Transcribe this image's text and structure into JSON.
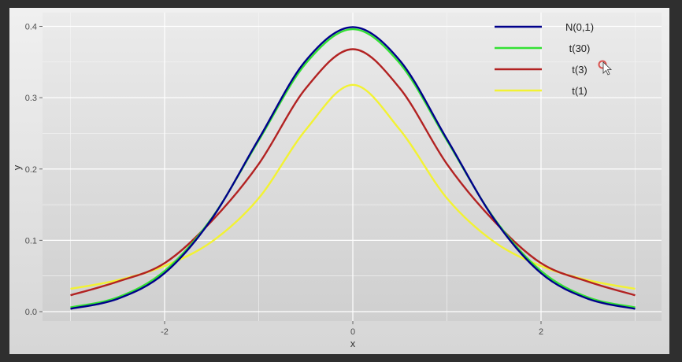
{
  "chart_data": {
    "type": "line",
    "title": "",
    "xlabel": "x",
    "ylabel": "y",
    "xlim": [
      -3,
      3
    ],
    "ylim": [
      0,
      0.4
    ],
    "x_ticks": [
      -2,
      0,
      2
    ],
    "y_ticks": [
      0.0,
      0.1,
      0.2,
      0.3,
      0.4
    ],
    "x_tick_labels": [
      "-2",
      "0",
      "2"
    ],
    "y_tick_labels": [
      "0.0",
      "0.1",
      "0.2",
      "0.3",
      "0.4"
    ],
    "grid": true,
    "legend_position": "top-right",
    "x": [
      -3,
      -2.5,
      -2,
      -1.5,
      -1,
      -0.5,
      0,
      0.5,
      1,
      1.5,
      2,
      2.5,
      3
    ],
    "series": [
      {
        "name": "N(0,1)",
        "color": "#00008b",
        "values": [
          0.004,
          0.018,
          0.054,
          0.13,
          0.242,
          0.352,
          0.399,
          0.352,
          0.242,
          0.13,
          0.054,
          0.018,
          0.004
        ]
      },
      {
        "name": "t(30)",
        "color": "#33e033",
        "values": [
          0.006,
          0.02,
          0.057,
          0.131,
          0.24,
          0.348,
          0.396,
          0.348,
          0.24,
          0.131,
          0.057,
          0.02,
          0.006
        ]
      },
      {
        "name": "t(3)",
        "color": "#b22222",
        "values": [
          0.023,
          0.042,
          0.068,
          0.127,
          0.207,
          0.313,
          0.368,
          0.313,
          0.207,
          0.127,
          0.068,
          0.042,
          0.023
        ]
      },
      {
        "name": "t(1)",
        "color": "#f2f233",
        "values": [
          0.032,
          0.044,
          0.064,
          0.098,
          0.159,
          0.255,
          0.318,
          0.255,
          0.159,
          0.098,
          0.064,
          0.044,
          0.032
        ]
      }
    ]
  }
}
